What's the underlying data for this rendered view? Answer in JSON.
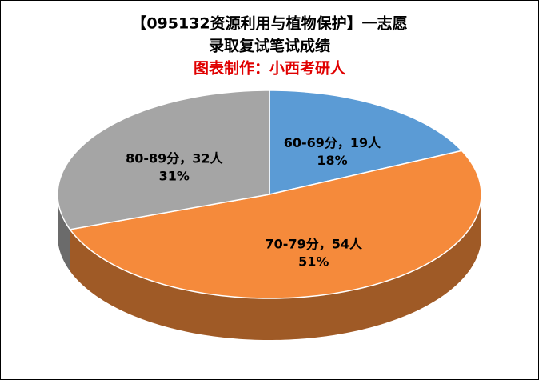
{
  "chart_data": {
    "type": "pie3d",
    "title": "【095132资源利用与植物保护】一志愿",
    "subtitle": "录取复试笔试成绩",
    "credit": "图表制作：小西考研人",
    "categories": [
      "60-69分",
      "70-79分",
      "80-89分"
    ],
    "labels": [
      "60-69分，19人",
      "70-79分，54人",
      "80-89分，32人"
    ],
    "values": [
      19,
      54,
      32
    ],
    "value_labels": [
      "19人",
      "54人",
      "32人"
    ],
    "percents": [
      18,
      51,
      31
    ],
    "percent_labels": [
      "18%",
      "51%",
      "31%"
    ],
    "colors": [
      "#5b9bd5",
      "#f58a3b",
      "#a5a5a5"
    ]
  }
}
